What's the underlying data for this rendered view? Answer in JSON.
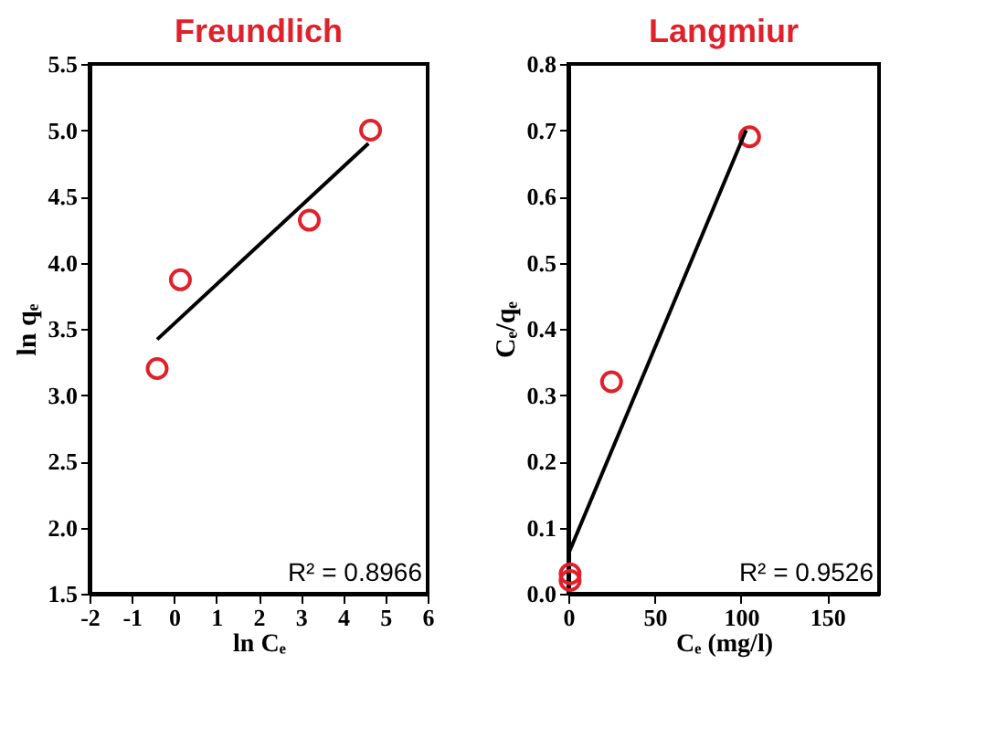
{
  "chart_data": [
    {
      "type": "scatter",
      "title": "Freundlich",
      "xlabel": "ln Cₑ",
      "ylabel": "ln qₑ",
      "xlim": [
        -2,
        6
      ],
      "xticks": [
        -2,
        -1,
        0,
        1,
        2,
        3,
        4,
        5,
        6
      ],
      "ylim": [
        1.5,
        5.5
      ],
      "yticks": [
        1.5,
        {
          "value": 2,
          "label": "2.0"
        },
        2.5,
        {
          "value": 3,
          "label": "3.0"
        },
        3.5,
        {
          "value": 4,
          "label": "4.0"
        },
        4.5,
        {
          "value": 5,
          "label": "5.0"
        },
        5.5
      ],
      "grid": false,
      "marker": "circle",
      "annotations": [
        "R² = 0.8966"
      ],
      "series": [
        {
          "type": "scatter",
          "color": "#e0202a",
          "x": [
            -0.4,
            0.15,
            3.2,
            4.65
          ],
          "values": [
            3.2,
            3.87,
            4.32,
            5.0
          ]
        },
        {
          "type": "line",
          "marker": "none",
          "color": "#000000",
          "x": [
            -0.4,
            4.6
          ],
          "values": [
            3.42,
            4.9
          ]
        }
      ]
    },
    {
      "type": "scatter",
      "title": "Langmiur",
      "xlabel": "Cₑ (mg/l)",
      "ylabel": "Cₑ/qₑ",
      "xlim": [
        0,
        180
      ],
      "xticks": [
        0,
        50,
        100,
        150
      ],
      "ylim": [
        0,
        0.8
      ],
      "yticks": [
        {
          "value": 0,
          "label": "0.0"
        },
        0.1,
        0.2,
        0.3,
        0.4,
        0.5,
        0.6,
        0.7,
        0.8
      ],
      "grid": false,
      "marker": "circle",
      "annotations": [
        "R² = 0.9526"
      ],
      "series": [
        {
          "type": "scatter",
          "color": "#e0202a",
          "x": [
            1,
            1,
            25,
            105
          ],
          "values": [
            0.02,
            0.03,
            0.32,
            0.69
          ]
        },
        {
          "type": "line",
          "marker": "none",
          "color": "#000000",
          "x": [
            0,
            103
          ],
          "values": [
            0.06,
            0.7
          ]
        }
      ]
    }
  ]
}
